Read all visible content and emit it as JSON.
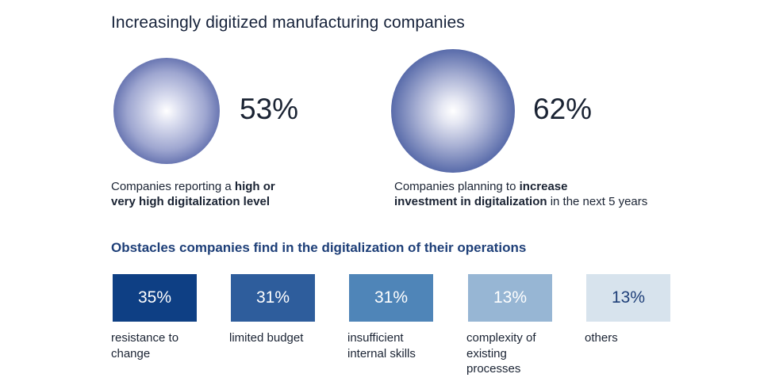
{
  "title": "Increasingly digitized manufacturing companies",
  "stats": [
    {
      "value": "53%",
      "desc_plain": "Companies reporting a ",
      "desc_bold_1": "high or",
      "desc_bold_2": "very high digitalization level",
      "desc_tail": ""
    },
    {
      "value": "62%",
      "desc_plain": "Companies planning to ",
      "desc_bold_1": "increase",
      "desc_bold_2": "investment in digitalization",
      "desc_tail": " in the next 5 years"
    }
  ],
  "obstacles_title": "Obstacles companies find in the digitalization of their operations",
  "obstacles": [
    {
      "value": "35%",
      "label": "resistance to change",
      "bg": "#0e3f84",
      "fg": "#ffffff"
    },
    {
      "value": "31%",
      "label": "limited budget",
      "bg": "#2e5d9c",
      "fg": "#ffffff"
    },
    {
      "value": "31%",
      "label": "insufficient internal skills",
      "bg": "#4f85b8",
      "fg": "#ffffff"
    },
    {
      "value": "13%",
      "label": "complexity of existing processes",
      "bg": "#97b6d4",
      "fg": "#ffffff"
    },
    {
      "value": "13%",
      "label": "others",
      "bg": "#d7e3ed",
      "fg": "#1e3f78"
    }
  ],
  "chart_data": [
    {
      "type": "table",
      "title": "Increasingly digitized manufacturing companies",
      "categories": [
        "Companies reporting a high or very high digitalization level",
        "Companies planning to increase investment in digitalization in the next 5 years"
      ],
      "values": [
        53,
        62
      ],
      "unit": "%"
    },
    {
      "type": "bar",
      "title": "Obstacles companies find in the digitalization of their operations",
      "categories": [
        "resistance to change",
        "limited budget",
        "insufficient internal skills",
        "complexity of existing processes",
        "others"
      ],
      "values": [
        35,
        31,
        31,
        13,
        13
      ],
      "unit": "%"
    }
  ]
}
